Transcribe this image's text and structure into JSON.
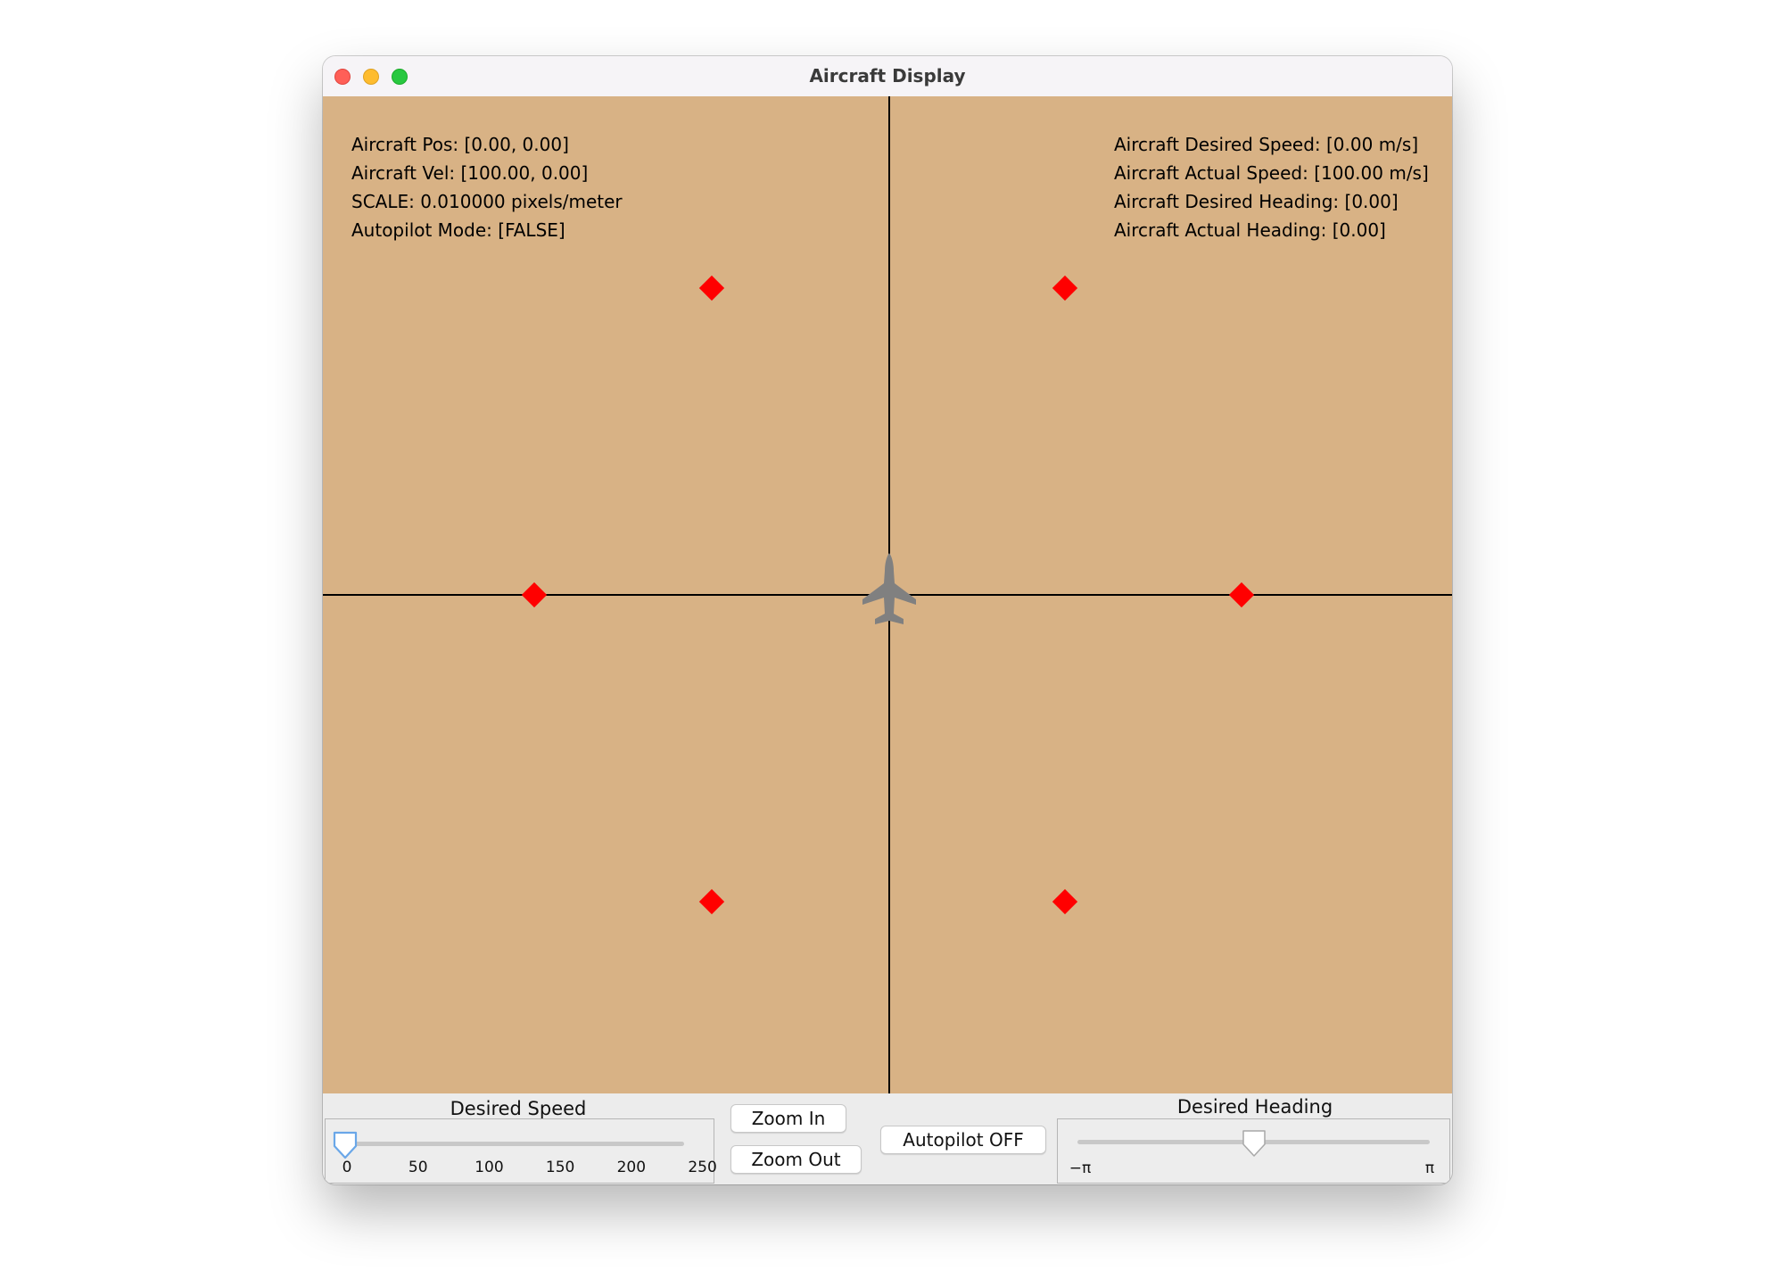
{
  "window": {
    "title": "Aircraft Display"
  },
  "canvas": {
    "background": "#d8b285",
    "waypoint_color": "#ff0000",
    "aircraft_color": "#808080",
    "icon": "aircraft-icon"
  },
  "info_left": [
    "Aircraft Pos: [0.00, 0.00]",
    "Aircraft Vel: [100.00, 0.00]",
    "SCALE: 0.010000 pixels/meter",
    "Autopilot Mode: [FALSE]"
  ],
  "info_right": [
    "Aircraft Desired Speed: [0.00 m/s]",
    "Aircraft Actual Speed: [100.00 m/s]",
    "Aircraft Desired Heading:  [0.00]",
    "Aircraft Actual Heading:  [0.00]"
  ],
  "speed_slider": {
    "label": "Desired Speed",
    "ticks": [
      "0",
      "50",
      "100",
      "150",
      "200",
      "250"
    ],
    "value": 0,
    "min": 0,
    "max": 250
  },
  "zoom": {
    "in_label": "Zoom In",
    "out_label": "Zoom Out"
  },
  "autopilot": {
    "label": "Autopilot OFF"
  },
  "heading_slider": {
    "label": "Desired Heading",
    "min_label": "−π",
    "max_label": "π",
    "value_fraction": 0.5
  }
}
